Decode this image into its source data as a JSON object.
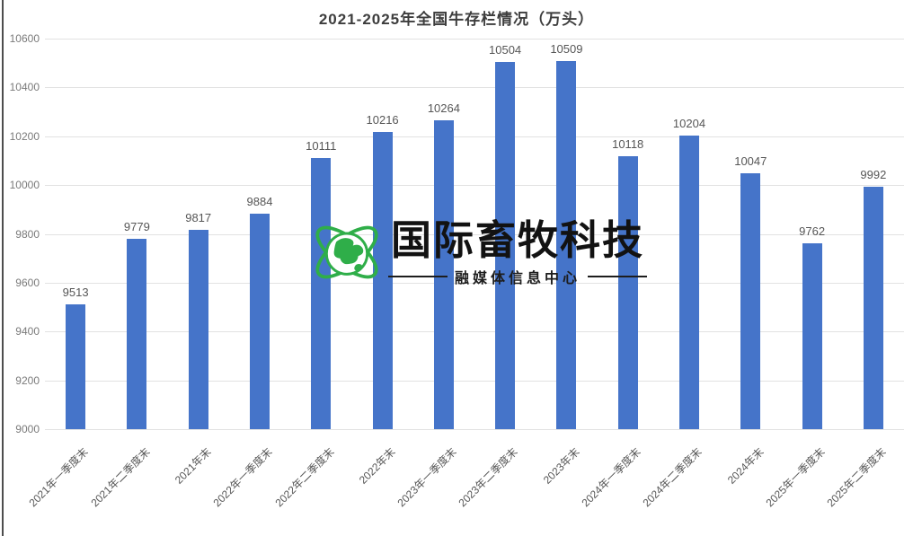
{
  "chart_data": {
    "type": "bar",
    "title": "2021-2025年全国牛存栏情况（万头）",
    "categories": [
      "2021年一季度末",
      "2021年二季度末",
      "2021年末",
      "2022年一季度末",
      "2022年二季度末",
      "2022年末",
      "2023年一季度末",
      "2023年二季度末",
      "2023年末",
      "2024年一季度末",
      "2024年二季度末",
      "2024年末",
      "2025年一季度末",
      "2025年二季度末"
    ],
    "values": [
      9513,
      9779,
      9817,
      9884,
      10111,
      10216,
      10264,
      10504,
      10509,
      10118,
      10204,
      10047,
      9762,
      9992
    ],
    "xlabel": "",
    "ylabel": "",
    "ylim": [
      9000,
      10600
    ],
    "yticks": [
      9000,
      9200,
      9400,
      9600,
      9800,
      10000,
      10200,
      10400,
      10600
    ],
    "grid": true,
    "legend": "none",
    "data_labels": true,
    "bar_color": "#4574C9",
    "gridline_color": "#e2e2e2",
    "tick_label_color": "#7a7a7a",
    "value_label_color": "#565656",
    "title_color": "#3d3d3d"
  },
  "watermark": {
    "brand": "国际畜牧科技",
    "subtitle": "融媒体信息中心",
    "icon": "globe-orbit-icon",
    "globe_color": "#2FAE49",
    "text_color": "#121212"
  }
}
